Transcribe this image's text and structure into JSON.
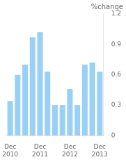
{
  "chart_data": {
    "type": "bar",
    "ylabel": "%change",
    "categories": [
      "Dec\n2010",
      null,
      null,
      null,
      "Dec\n2011",
      null,
      null,
      null,
      "Dec\n2012",
      null,
      null,
      null,
      "Dec\n2013"
    ],
    "values": [
      0.34,
      0.6,
      0.7,
      0.97,
      1.02,
      0.63,
      0.3,
      0.3,
      0.46,
      0.3,
      0.7,
      0.72,
      0.63
    ],
    "ylim": [
      0,
      1.2
    ],
    "yticks": [
      0,
      0.3,
      0.6,
      0.9,
      1.2
    ],
    "grid": false
  }
}
